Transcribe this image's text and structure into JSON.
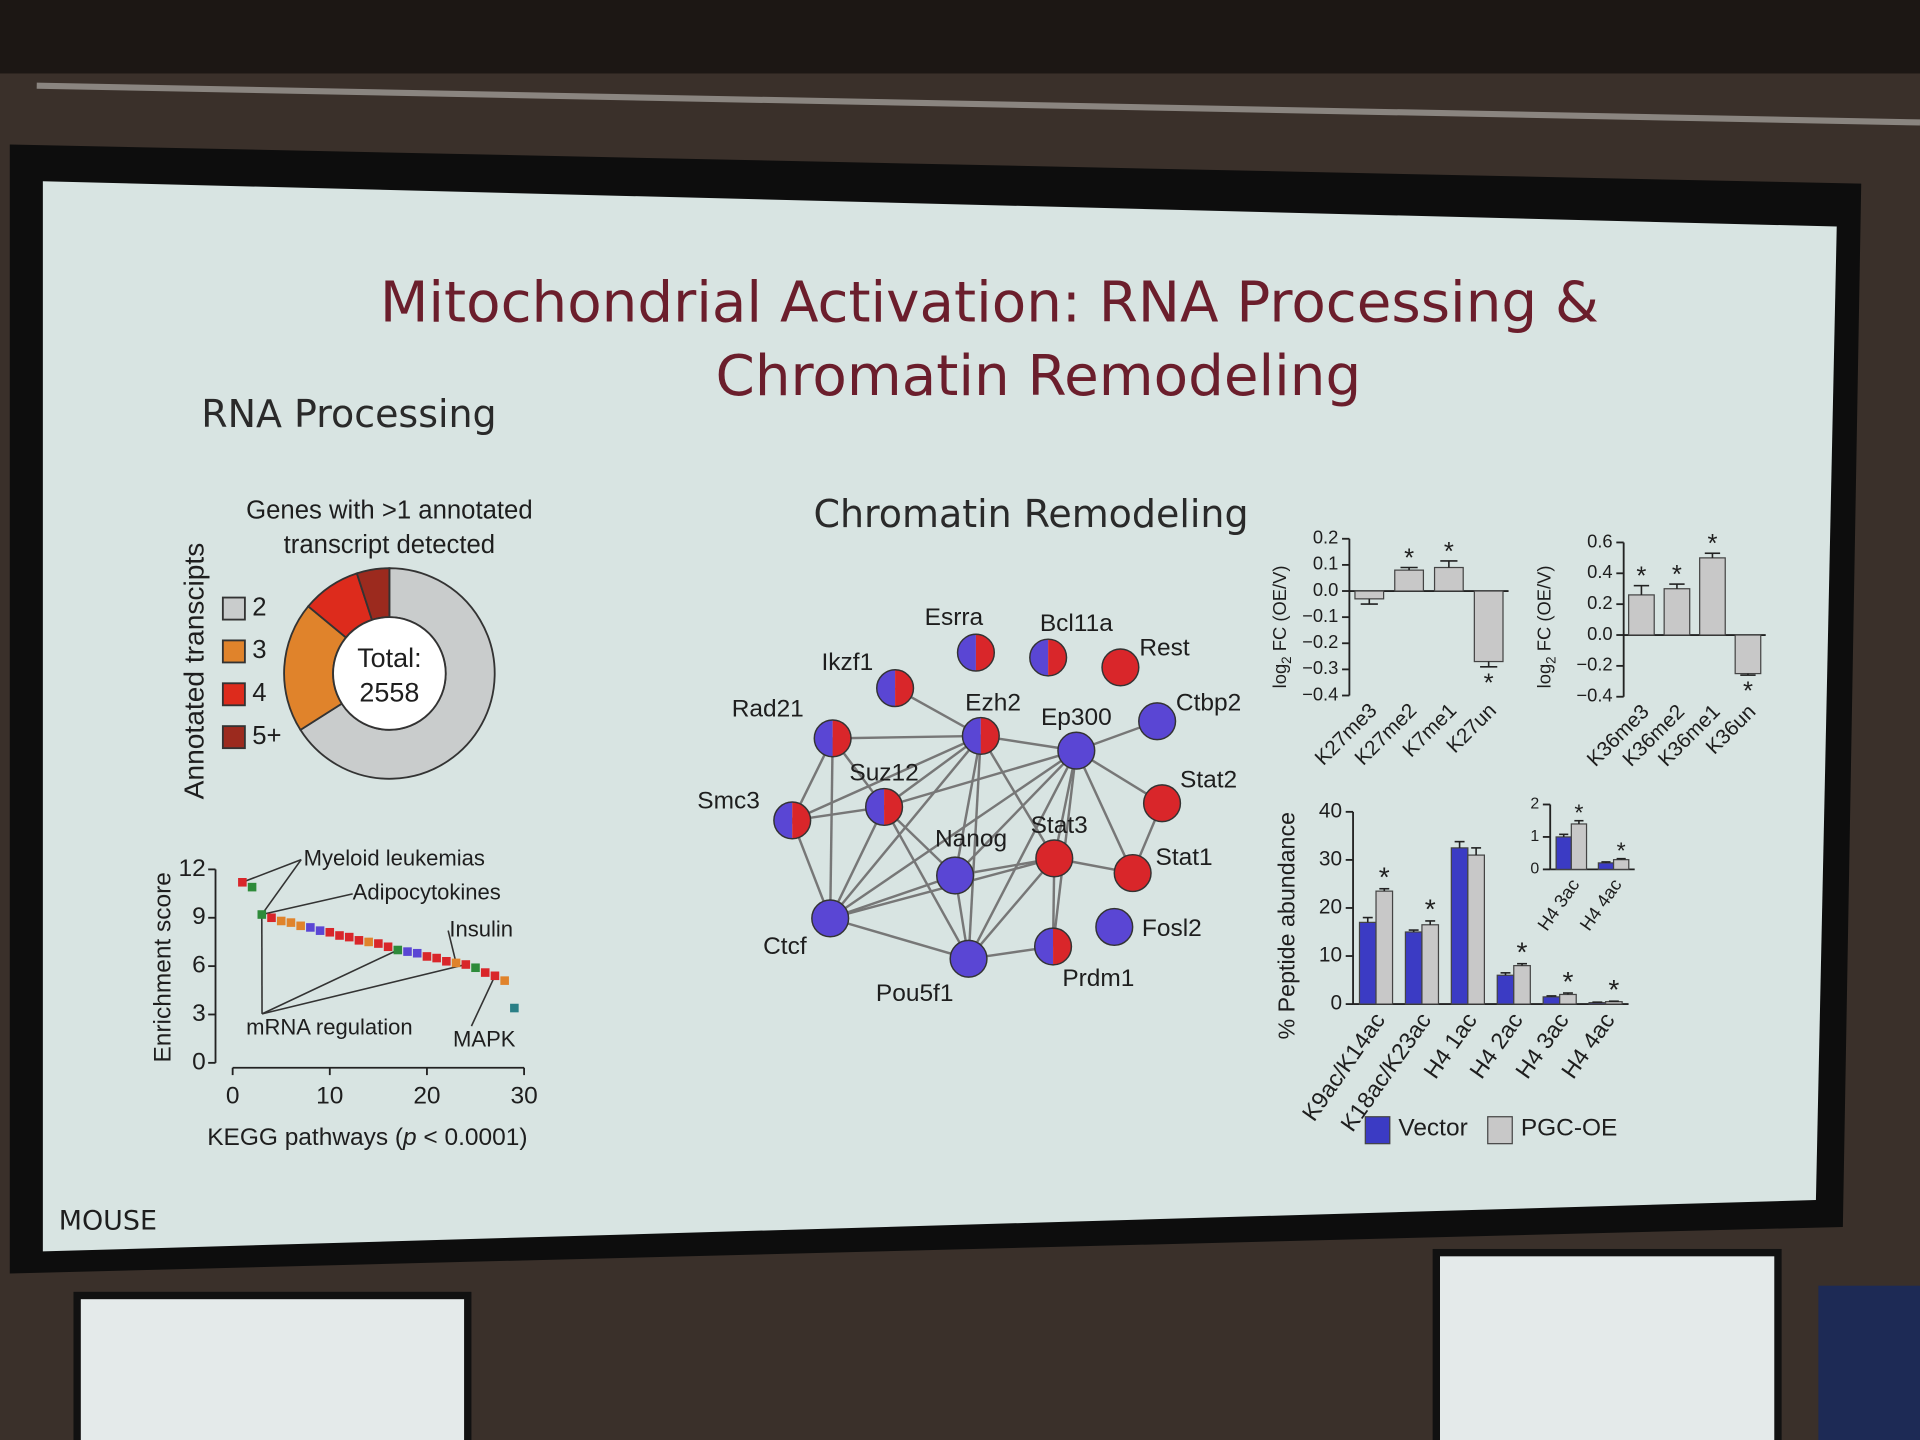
{
  "slide": {
    "title_lines": [
      "Mitochondrial Activation: RNA Processing &",
      "Chromatin Remodeling"
    ],
    "left_heading": "RNA Processing",
    "center_heading": "Chromatin Remodeling",
    "footer": "MOUSE"
  },
  "network": {
    "nodes": [
      {
        "label": "Esrra",
        "color": [
          "#5a46d4",
          "#d9262a"
        ]
      },
      {
        "label": "Bcl11a",
        "color": [
          "#5a46d4",
          "#d9262a"
        ]
      },
      {
        "label": "Rest",
        "color": "#d9262a"
      },
      {
        "label": "Ikzf1",
        "color": [
          "#5a46d4",
          "#d9262a"
        ]
      },
      {
        "label": "Ctbp2",
        "color": "#5a46d4"
      },
      {
        "label": "Rad21",
        "color": [
          "#5a46d4",
          "#d9262a"
        ]
      },
      {
        "label": "Ezh2",
        "color": [
          "#5a46d4",
          "#d9262a"
        ]
      },
      {
        "label": "Ep300",
        "color": "#5a46d4"
      },
      {
        "label": "Suz12",
        "color": [
          "#5a46d4",
          "#d9262a"
        ]
      },
      {
        "label": "Smc3",
        "color": [
          "#5a46d4",
          "#d9262a"
        ]
      },
      {
        "label": "Stat2",
        "color": "#d9262a"
      },
      {
        "label": "Nanog",
        "color": "#5a46d4"
      },
      {
        "label": "Stat3",
        "color": "#d9262a"
      },
      {
        "label": "Stat1",
        "color": "#d9262a"
      },
      {
        "label": "Ctcf",
        "color": "#5a46d4"
      },
      {
        "label": "Fosl2",
        "color": "#5a46d4"
      },
      {
        "label": "Pou5f1",
        "color": "#5a46d4"
      },
      {
        "label": "Prdm1",
        "color": [
          "#5a46d4",
          "#d9262a"
        ]
      }
    ]
  },
  "chart_data": [
    {
      "type": "donut",
      "title_lines": [
        "Genes with >1 annotated",
        "transcript detected"
      ],
      "ylabel": "Annotated transcipts",
      "categories": [
        "2",
        "3",
        "4",
        "5+"
      ],
      "values": [
        66,
        20,
        9,
        5
      ],
      "colors": [
        "#c9cccc",
        "#e0832b",
        "#dd2b1c",
        "#9c2a1e"
      ],
      "center_label": [
        "Total:",
        "2558"
      ]
    },
    {
      "type": "scatter",
      "x": [
        1,
        2,
        3,
        4,
        5,
        6,
        7,
        8,
        9,
        10,
        11,
        12,
        13,
        14,
        15,
        16,
        17,
        18,
        19,
        20,
        21,
        22,
        23,
        24,
        25,
        26,
        27,
        28,
        29
      ],
      "y": [
        11.2,
        10.9,
        9.2,
        9.0,
        8.8,
        8.7,
        8.5,
        8.4,
        8.2,
        8.1,
        7.9,
        7.8,
        7.6,
        7.5,
        7.4,
        7.2,
        7.0,
        6.9,
        6.8,
        6.6,
        6.5,
        6.3,
        6.2,
        6.1,
        5.9,
        5.6,
        5.4,
        5.1,
        3.4
      ],
      "colors": [
        "#d9262a",
        "#2e8b3a",
        "#2e8b3a",
        "#d9262a",
        "#e0832b",
        "#e0832b",
        "#e0832b",
        "#5a46d4",
        "#5a46d4",
        "#d9262a",
        "#d9262a",
        "#d9262a",
        "#d9262a",
        "#e0832b",
        "#d9262a",
        "#d9262a",
        "#2e8b3a",
        "#5a46d4",
        "#5a46d4",
        "#d9262a",
        "#d9262a",
        "#d9262a",
        "#e0832b",
        "#d9262a",
        "#2e8b3a",
        "#d9262a",
        "#d9262a",
        "#e0832b",
        "#2a7f86"
      ],
      "xlim": [
        0,
        30
      ],
      "xticks": [
        0,
        10,
        20,
        30
      ],
      "ylim": [
        0,
        12
      ],
      "yticks": [
        0,
        3,
        6,
        9,
        12
      ],
      "xlabel": {
        "text": "KEGG pathways (",
        "italic": "p",
        "rest": " < 0.0001)"
      },
      "ylabel": "Enrichment score",
      "annotations": [
        "Myeloid leukemias",
        "Adipocytokines",
        "Insulin",
        "mRNA regulation",
        "MAPK"
      ]
    },
    {
      "type": "bar",
      "categories": [
        "K27me3",
        "K27me2",
        "K7me1",
        "K27un"
      ],
      "values": [
        -0.03,
        0.08,
        0.09,
        -0.27
      ],
      "errors": [
        0.02,
        0.01,
        0.025,
        0.02
      ],
      "color": "#c8c8c8",
      "significance": [
        false,
        true,
        true,
        true
      ],
      "significance_label": "*",
      "ylabel": {
        "base": "log",
        "sub": "2",
        "rest": " FC (OE/V)"
      },
      "ylim": [
        -0.4,
        0.2
      ],
      "yticks": [
        {
          "value": -0.4,
          "label": "−0.4"
        },
        {
          "value": -0.3,
          "label": "−0.3"
        },
        {
          "value": -0.2,
          "label": "−0.2"
        },
        {
          "value": -0.1,
          "label": "−0.1"
        },
        {
          "value": 0,
          "label": "0.0"
        },
        0.1,
        0.2
      ]
    },
    {
      "type": "bar",
      "categories": [
        "K36me3",
        "K36me2",
        "K36me1",
        "K36un"
      ],
      "values": [
        0.26,
        0.3,
        0.5,
        -0.25
      ],
      "errors": [
        0.06,
        0.03,
        0.03,
        0.01
      ],
      "color": "#c8c8c8",
      "significance": [
        true,
        true,
        true,
        true
      ],
      "significance_label": "*",
      "ylabel": {
        "base": "log",
        "sub": "2",
        "rest": " FC (OE/V)"
      },
      "ylim": [
        -0.4,
        0.6
      ],
      "yticks": [
        {
          "value": -0.4,
          "label": "−0.4"
        },
        {
          "value": -0.2,
          "label": "−0.2"
        },
        {
          "value": 0,
          "label": "0.0"
        },
        0.2,
        0.4,
        0.6
      ]
    },
    {
      "type": "grouped_bar",
      "categories": [
        "K9ac/K14ac",
        "K18ac/K23ac",
        "H4 1ac",
        "H4 2ac",
        "H4 3ac",
        "H4 4ac"
      ],
      "series": [
        {
          "name": "Vector",
          "color": "#3b3bc4",
          "values": [
            17,
            15,
            32.5,
            6,
            1.5,
            0.3
          ],
          "errors": [
            1,
            0.4,
            1.3,
            0.5,
            0.2,
            0.1
          ]
        },
        {
          "name": "PGC-OE",
          "color": "#c8c8c8",
          "values": [
            23.5,
            16.5,
            31,
            8,
            2,
            0.5
          ],
          "errors": [
            0.5,
            0.8,
            1.5,
            0.4,
            0.3,
            0.1
          ],
          "significance": [
            true,
            true,
            false,
            true,
            true,
            true
          ]
        }
      ],
      "significance_label": "*",
      "ylabel": "% Peptide abundance",
      "ylim": [
        0,
        40
      ],
      "yticks": [
        0,
        10,
        20,
        30,
        40
      ],
      "legend": "bottom"
    },
    {
      "type": "grouped_bar",
      "categories": [
        "H4 3ac",
        "H4 4ac"
      ],
      "series": [
        {
          "color": "#3b3bc4",
          "values": [
            1.0,
            0.2
          ],
          "errors": [
            0.08,
            0.03
          ]
        },
        {
          "color": "#c8c8c8",
          "values": [
            1.4,
            0.3
          ],
          "errors": [
            0.1,
            0.03
          ],
          "significance": [
            true,
            true
          ]
        }
      ],
      "significance_label": "*",
      "ylim": [
        0,
        2
      ],
      "yticks": [
        0,
        1,
        2
      ]
    }
  ]
}
